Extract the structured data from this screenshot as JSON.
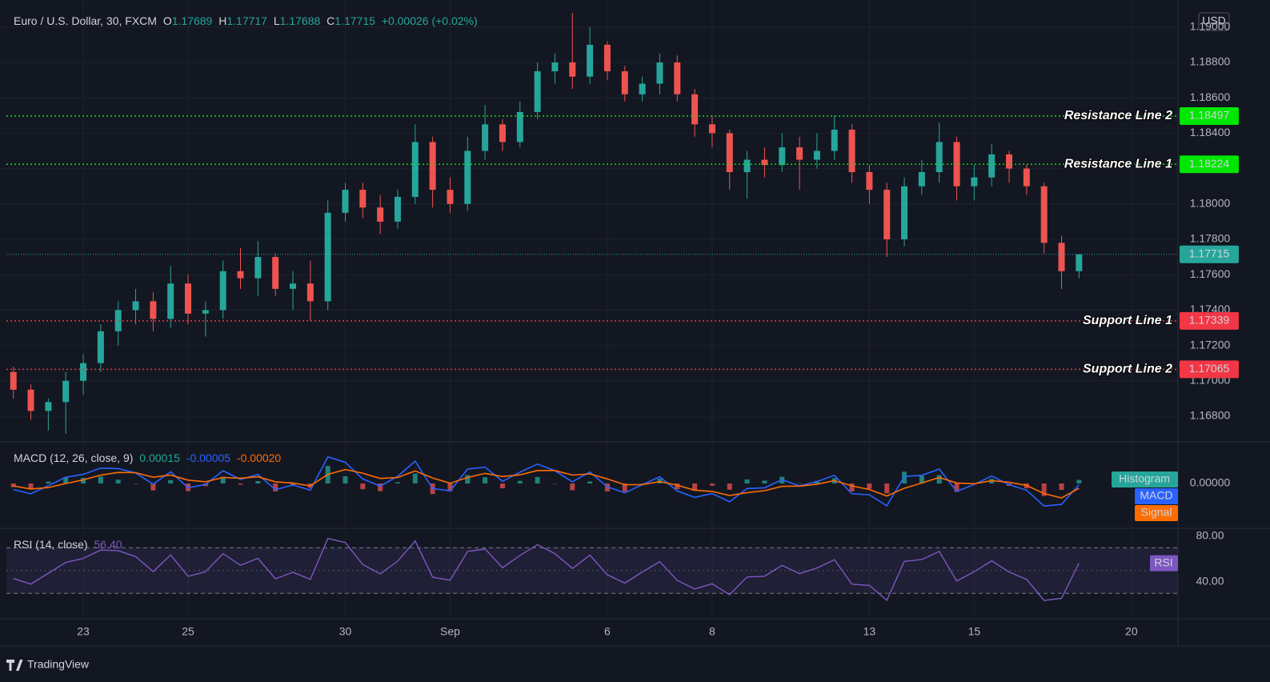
{
  "chart_data": [
    {
      "type": "candlestick",
      "title": "Euro / U.S. Dollar, 30, FXCM",
      "ohlc_legend": [
        {
          "label": "O",
          "value": 1.17689
        },
        {
          "label": "H",
          "value": 1.17717
        },
        {
          "label": "L",
          "value": 1.17688
        },
        {
          "label": "C",
          "value": 1.17715
        }
      ],
      "change": "+0.00026 (+0.02%)",
      "currency": "USD",
      "categories": [
        null,
        null,
        null,
        null,
        "23",
        null,
        null,
        null,
        null,
        null,
        "25",
        null,
        null,
        null,
        null,
        null,
        null,
        null,
        null,
        "30",
        null,
        null,
        null,
        null,
        null,
        "Sep",
        null,
        null,
        null,
        null,
        null,
        null,
        null,
        null,
        "6",
        null,
        null,
        null,
        null,
        null,
        "8",
        null,
        null,
        null,
        null,
        null,
        null,
        null,
        null,
        "13",
        null,
        null,
        null,
        null,
        null,
        "15",
        null,
        null,
        null,
        null,
        null,
        null,
        null,
        null,
        "20"
      ],
      "open": [
        1.1705,
        1.1695,
        1.1683,
        1.1688,
        1.17,
        1.171,
        1.1728,
        1.174,
        1.1745,
        1.1735,
        1.1755,
        1.1738,
        1.174,
        1.1762,
        1.1758,
        1.177,
        1.1752,
        1.1755,
        1.1745,
        1.1795,
        1.1808,
        1.1798,
        1.179,
        1.1804,
        1.1835,
        1.1808,
        1.18,
        1.183,
        1.1845,
        1.1835,
        1.1852,
        1.1875,
        1.188,
        1.1872,
        1.189,
        1.1875,
        1.1862,
        1.1868,
        1.188,
        1.1862,
        1.1845,
        1.184,
        1.1818,
        1.1825,
        1.1822,
        1.1832,
        1.1825,
        1.183,
        1.1842,
        1.1818,
        1.1808,
        1.178,
        1.181,
        1.1818,
        1.1835,
        1.181,
        1.1815,
        1.1828,
        1.182,
        1.181,
        1.1778,
        1.1762,
        null,
        null,
        null
      ],
      "high": [
        1.1708,
        1.1698,
        1.169,
        1.1705,
        1.1715,
        1.1732,
        1.1745,
        1.1752,
        1.175,
        1.1765,
        1.176,
        1.1745,
        1.1768,
        1.1775,
        1.1779,
        1.1772,
        1.1762,
        1.1768,
        1.1802,
        1.1812,
        1.1812,
        1.1805,
        1.1808,
        1.1845,
        1.1838,
        1.1815,
        1.1838,
        1.1856,
        1.1848,
        1.1858,
        1.188,
        1.1885,
        1.1908,
        1.19,
        1.1892,
        1.1878,
        1.1872,
        1.1885,
        1.1884,
        1.1865,
        1.185,
        1.1842,
        1.183,
        1.1832,
        1.184,
        1.1838,
        1.184,
        1.185,
        1.1845,
        1.1822,
        1.1812,
        1.1815,
        1.1825,
        1.1846,
        1.1838,
        1.1822,
        1.1834,
        1.183,
        1.1822,
        1.1812,
        1.1782,
        1.17717,
        null,
        null,
        null
      ],
      "low": [
        1.169,
        1.1678,
        1.1672,
        1.167,
        1.1692,
        1.1705,
        1.172,
        1.1732,
        1.1728,
        1.173,
        1.1732,
        1.1725,
        1.1735,
        1.1752,
        1.1748,
        1.1748,
        1.174,
        1.1734,
        1.174,
        1.179,
        1.1792,
        1.1783,
        1.1786,
        1.18,
        1.1798,
        1.1795,
        1.1796,
        1.1825,
        1.183,
        1.1832,
        1.1848,
        1.1868,
        1.1865,
        1.1868,
        1.187,
        1.1858,
        1.1858,
        1.1862,
        1.1858,
        1.1838,
        1.1832,
        1.1808,
        1.1803,
        1.1815,
        1.1818,
        1.1808,
        1.182,
        1.1825,
        1.1812,
        1.18,
        1.177,
        1.1776,
        1.1805,
        1.1812,
        1.1802,
        1.1802,
        1.181,
        1.1812,
        1.1805,
        1.1772,
        1.1752,
        1.1758,
        null,
        null,
        null
      ],
      "close": [
        1.1695,
        1.1683,
        1.1688,
        1.17,
        1.171,
        1.1728,
        1.174,
        1.1745,
        1.1735,
        1.1755,
        1.1738,
        1.174,
        1.1762,
        1.1758,
        1.177,
        1.1752,
        1.1755,
        1.1745,
        1.1795,
        1.1808,
        1.1798,
        1.179,
        1.1804,
        1.1835,
        1.1808,
        1.18,
        1.183,
        1.1845,
        1.1835,
        1.1852,
        1.1875,
        1.188,
        1.1872,
        1.189,
        1.1875,
        1.1862,
        1.1868,
        1.188,
        1.1862,
        1.1845,
        1.184,
        1.1818,
        1.1825,
        1.1822,
        1.1832,
        1.1825,
        1.183,
        1.1842,
        1.1818,
        1.1808,
        1.178,
        1.181,
        1.1818,
        1.1835,
        1.181,
        1.1815,
        1.1828,
        1.182,
        1.181,
        1.1778,
        1.1762,
        1.17715,
        null,
        null,
        null
      ],
      "up_color": "#26a69a",
      "down_color": "#ef5350",
      "ylim": [
        1.16655,
        1.19153
      ],
      "yticks": [
        {
          "value": 1.168,
          "label": "1.16800"
        },
        {
          "value": 1.17,
          "label": "1.17000"
        },
        {
          "value": 1.172,
          "label": "1.17200"
        },
        {
          "value": 1.174,
          "label": "1.17400"
        },
        {
          "value": 1.176,
          "label": "1.17600"
        },
        {
          "value": 1.178,
          "label": "1.17800"
        },
        {
          "value": 1.18,
          "label": "1.18000"
        },
        {
          "value": 1.182,
          "label": "1.18200"
        },
        {
          "value": 1.184,
          "label": "1.18400"
        },
        {
          "value": 1.186,
          "label": "1.18600"
        },
        {
          "value": 1.188,
          "label": "1.18800"
        },
        {
          "value": 1.19,
          "label": "1.19000"
        }
      ],
      "grid": true,
      "lines": [
        {
          "name": "Resistance Line 2",
          "value": 1.18497,
          "color": "#00e600",
          "label_color": "#000000"
        },
        {
          "name": "Resistance Line 1",
          "value": 1.18224,
          "color": "#00e600",
          "label_color": "#000000"
        },
        {
          "name": "Support Line 1",
          "value": 1.17339,
          "color": "#f23645",
          "label_color": "#ffffff"
        },
        {
          "name": "Support Line 2",
          "value": 1.17065,
          "color": "#f23645",
          "label_color": "#ffffff"
        }
      ],
      "last_price": {
        "value": 1.17715,
        "color": "#26a69a"
      }
    },
    {
      "type": "macd",
      "title": "MACD (12, 26, close, 9)",
      "ylim": [
        -0.0016,
        0.0016
      ],
      "yticks": [
        {
          "value": 0,
          "label": "0.00000"
        }
      ],
      "series": [
        {
          "name": "Histogram",
          "color": "#26a69a",
          "down_color": "#ef5350",
          "value_label": "0.00015",
          "values": [
            -0.00015,
            -0.0002,
            8e-05,
            0.00026,
            0.00023,
            0.00029,
            0.00016,
            -1e-05,
            -0.00029,
            0.00014,
            -0.00032,
            -0.00011,
            0.00028,
            -5e-05,
            0.0001,
            -0.00033,
            -8e-05,
            -0.00018,
            0.00073,
            0.0003,
            -0.00024,
            -0.00032,
            5e-05,
            0.00041,
            -0.00044,
            -0.00032,
            0.00035,
            0.00026,
            -0.0002,
            0.00011,
            0.00027,
            -1e-05,
            -0.00028,
            8e-05,
            -0.00033,
            -0.00034,
            0,
            0.0002,
            -0.00024,
            -0.0003,
            -9e-05,
            -0.00026,
            0.00017,
            0.00012,
            0.00028,
            1e-05,
            0.00011,
            0.00022,
            -0.00033,
            -0.00022,
            -0.00041,
            0.00049,
            0.00032,
            0.00035,
            -0.00035,
            -3e-05,
            0.00019,
            -0.0001,
            -0.0002,
            -0.00052,
            -0.00027,
            0.00015,
            null,
            null,
            null
          ]
        },
        {
          "name": "MACD",
          "color": "#2962ff",
          "value_label": "-0.00005",
          "values": [
            -0.00025,
            -0.00043,
            -9e-05,
            0.00026,
            0.00038,
            0.00064,
            0.00062,
            0.00044,
            -3e-05,
            0.00049,
            -0.00018,
            -4e-05,
            0.00053,
            0.00017,
            0.00038,
            -0.00026,
            -6e-05,
            -0.00028,
            0.00111,
            0.00088,
            0.00019,
            -0.00011,
            0.0003,
            0.00093,
            -0.00021,
            -0.00031,
            0.0006,
            0.00068,
            9e-05,
            0.00047,
            0.00081,
            0.00053,
            7e-05,
            0.00048,
            -0.00014,
            -0.00039,
            -5e-05,
            0.00028,
            -0.00031,
            -0.00058,
            -0.00042,
            -0.00076,
            -0.00021,
            -0.00018,
            0.00016,
            -0.0001,
            8e-05,
            0.00034,
            -0.00043,
            -0.00047,
            -0.00093,
            0.00029,
            0.00034,
            0.0006,
            -0.00033,
            -4e-05,
            0.00031,
            -5e-05,
            -0.00028,
            -0.00094,
            -0.00087,
            -5e-05,
            null,
            null,
            null
          ]
        },
        {
          "name": "Signal",
          "color": "#ff6d00",
          "value_label": "-0.00020",
          "values": [
            -0.0001,
            -0.00023,
            -0.00017,
            0,
            0.00015,
            0.00035,
            0.00046,
            0.00045,
            0.00026,
            0.00035,
            0.00014,
            7e-05,
            0.00025,
            0.00022,
            0.00028,
            7e-05,
            2e-05,
            -0.0001,
            0.00038,
            0.00058,
            0.00043,
            0.00021,
            0.00025,
            0.00052,
            0.00023,
            1e-05,
            0.00025,
            0.00042,
            0.00029,
            0.00036,
            0.00054,
            0.00054,
            0.00035,
            0.0004,
            0.00019,
            -5e-05,
            -5e-05,
            8e-05,
            -7e-05,
            -0.00028,
            -0.00033,
            -0.0005,
            -0.00038,
            -0.0003,
            -0.00012,
            -0.00011,
            -3e-05,
            0.00012,
            -0.0001,
            -0.00025,
            -0.00052,
            -0.0002,
            2e-05,
            0.00025,
            2e-05,
            -1e-05,
            0.00012,
            5e-05,
            -8e-05,
            -0.00042,
            -0.0006,
            -0.0002,
            null,
            null,
            null
          ]
        }
      ]
    },
    {
      "type": "rsi",
      "title": "RSI (14, close)",
      "value_label": "56.40",
      "ylim": [
        7.7,
        85.6
      ],
      "yticks": [
        {
          "value": 80,
          "label": "80.00"
        },
        {
          "value": 40,
          "label": "40.00"
        }
      ],
      "bands": {
        "upper": 70,
        "middle": 50,
        "lower": 30,
        "color": "#7e57c2"
      },
      "series": [
        {
          "name": "RSI",
          "color": "#7e57c2",
          "values": [
            43,
            38.1,
            47.6,
            57.1,
            60.6,
            67.9,
            67.4,
            62.2,
            49.1,
            63.6,
            44.9,
            48.9,
            64.8,
            54.6,
            60.7,
            42.7,
            48.5,
            42.2,
            78.1,
            74.6,
            55.3,
            47.1,
            58.3,
            75.9,
            44.1,
            41.5,
            66.7,
            68.9,
            52.5,
            63.2,
            72.7,
            64.8,
            51.8,
            63.5,
            46.2,
            39,
            48.7,
            57.8,
            41.3,
            33.8,
            38.4,
            28.8,
            44.3,
            45,
            54.5,
            47.3,
            52.2,
            59.5,
            38,
            37,
            23.9,
            58,
            59.6,
            66.7,
            40.8,
            48.9,
            58.5,
            48.7,
            42.3,
            23.8,
            25.6,
            56.4,
            null,
            null,
            null
          ]
        }
      ]
    }
  ],
  "footer": "TradingView"
}
